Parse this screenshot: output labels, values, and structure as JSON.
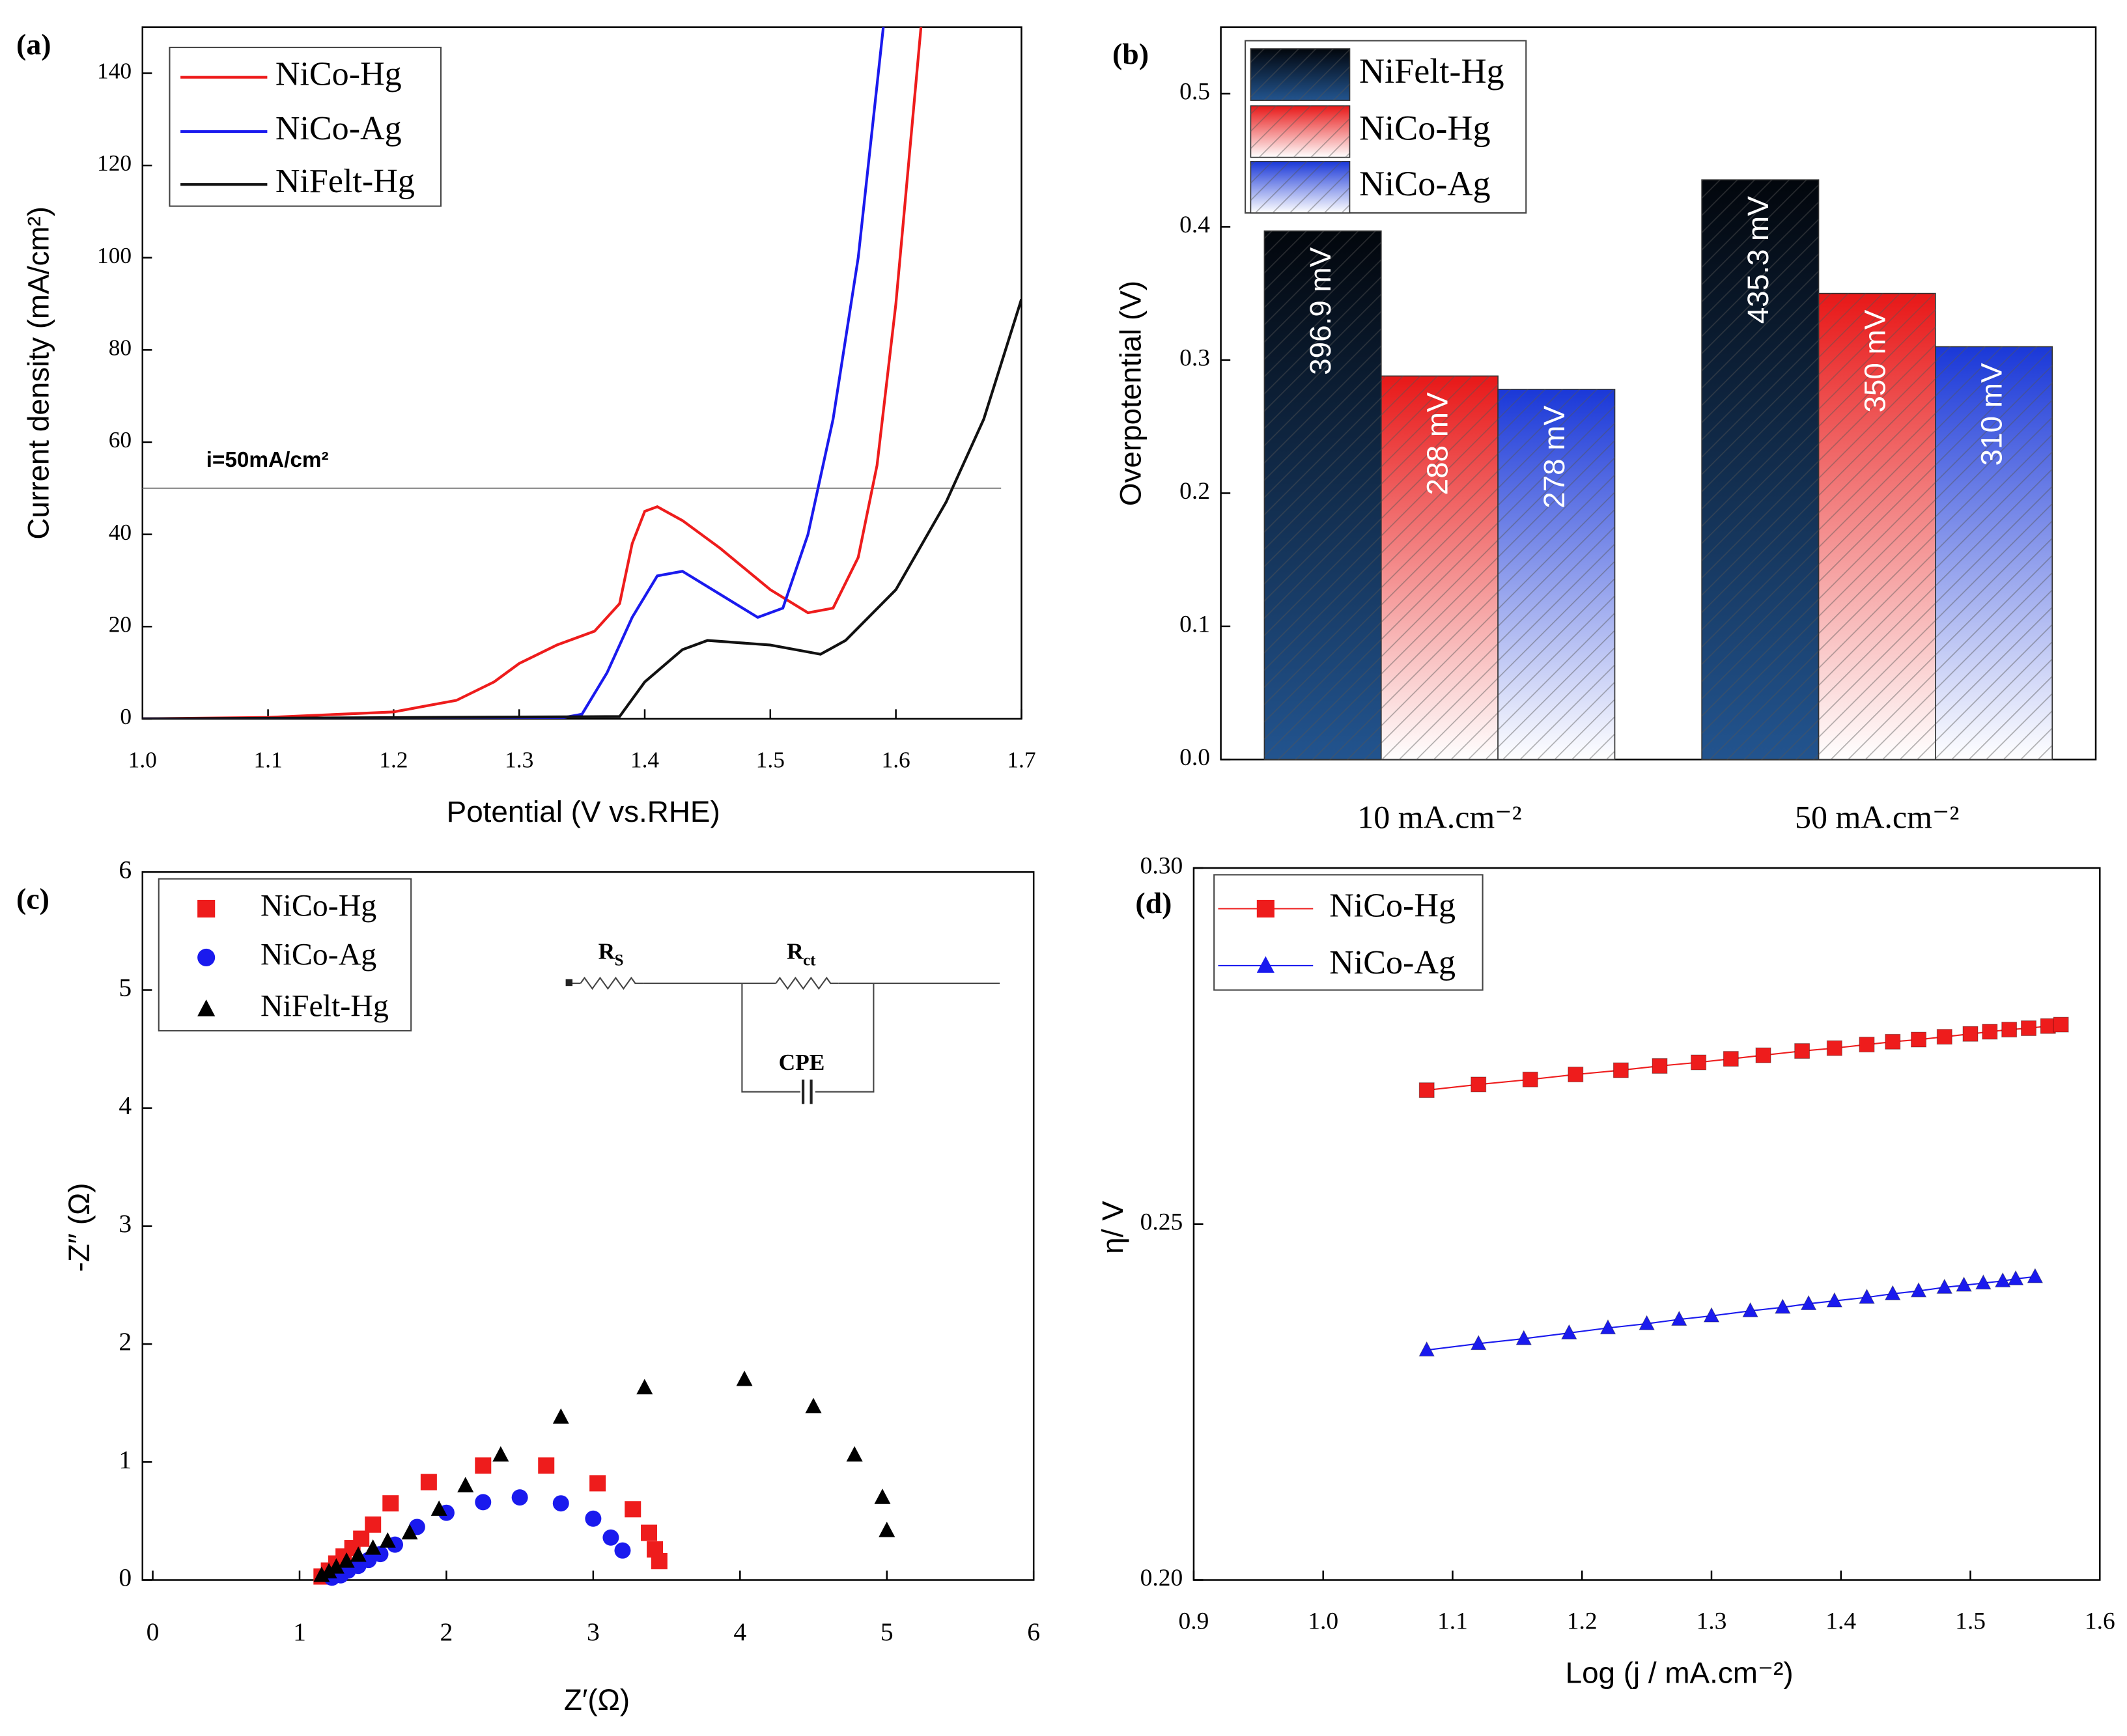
{
  "chart_data": [
    {
      "type": "line",
      "panel": "(a)",
      "x_label": "Potential (V vs.RHE)",
      "y_label": "Current density (mA/cm²)",
      "xlim": [
        1.0,
        1.7
      ],
      "xticks": [
        {
          "value": 1.0,
          "label": "1.0"
        },
        1.1,
        1.2,
        1.3,
        1.4,
        1.5,
        1.6,
        1.7
      ],
      "ylim": [
        0,
        150
      ],
      "yticks": [
        0,
        20,
        40,
        60,
        80,
        100,
        120,
        140
      ],
      "hline": 50,
      "annotation": "i=50mA/cm²",
      "series": [
        {
          "name": "NiCo-Hg",
          "color": "#ee1c1c",
          "x": [
            1.0,
            1.1,
            1.2,
            1.25,
            1.28,
            1.3,
            1.33,
            1.36,
            1.38,
            1.39,
            1.4,
            1.41,
            1.43,
            1.46,
            1.5,
            1.53,
            1.55,
            1.57,
            1.585,
            1.6,
            1.61,
            1.62
          ],
          "values": [
            0,
            0.3,
            1.5,
            4,
            8,
            12,
            16,
            19,
            25,
            38,
            45,
            46,
            43,
            37,
            28,
            23,
            24,
            35,
            55,
            90,
            120,
            150
          ]
        },
        {
          "name": "NiCo-Ag",
          "color": "#1a1aee",
          "x": [
            1.0,
            1.33,
            1.35,
            1.37,
            1.39,
            1.41,
            1.43,
            1.46,
            1.49,
            1.51,
            1.53,
            1.55,
            1.57,
            1.59
          ],
          "values": [
            0,
            0,
            1,
            10,
            22,
            31,
            32,
            27,
            22,
            24,
            40,
            65,
            100,
            150
          ]
        },
        {
          "name": "NiFelt-Hg",
          "color": "#111111",
          "x": [
            1.0,
            1.38,
            1.4,
            1.43,
            1.45,
            1.5,
            1.54,
            1.56,
            1.6,
            1.64,
            1.67,
            1.7
          ],
          "values": [
            0,
            0.5,
            8,
            15,
            17,
            16,
            14,
            17,
            28,
            47,
            65,
            91
          ]
        }
      ]
    },
    {
      "type": "bar",
      "panel": "(b)",
      "y_label": "Overpotential (V)",
      "categories": [
        "10 mA.cm⁻²",
        "50 mA.cm⁻²"
      ],
      "ylim": [
        0,
        0.55
      ],
      "yticks": [
        {
          "value": 0,
          "label": "0.0"
        },
        0.1,
        0.2,
        0.3,
        0.4,
        0.5
      ],
      "series": [
        {
          "name": "NiFelt-Hg",
          "colors": [
            "#02060c",
            "#22548f"
          ],
          "hatch": true,
          "values": [
            0.3969,
            0.4353
          ],
          "value_labels": [
            "396.9 mV",
            "435.3 mV"
          ]
        },
        {
          "name": "NiCo-Hg",
          "colors": [
            "#e81818",
            "#ffffff"
          ],
          "hatch": true,
          "values": [
            0.288,
            0.35
          ],
          "value_labels": [
            "288 mV",
            "350 mV"
          ]
        },
        {
          "name": "NiCo-Ag",
          "colors": [
            "#1a38d8",
            "#ffffff"
          ],
          "hatch": true,
          "values": [
            0.278,
            0.31
          ],
          "value_labels": [
            "278 mV",
            "310 mV"
          ]
        }
      ]
    },
    {
      "type": "scatter",
      "panel": "(c)",
      "x_label": "Z′(Ω)",
      "y_label": "-Z″ (Ω)",
      "xlim": [
        -0.07,
        6
      ],
      "xticks": [
        0,
        1,
        2,
        3,
        4,
        5,
        6
      ],
      "ylim": [
        0,
        6
      ],
      "yticks": [
        0,
        1,
        2,
        3,
        4,
        5,
        6
      ],
      "circuit": {
        "rs": {
          "main": "R",
          "sub": "S"
        },
        "rct": {
          "main": "R",
          "sub": "ct"
        },
        "cpe": "CPE"
      },
      "series": [
        {
          "name": "NiCo-Hg",
          "color": "#ee1c1c",
          "marker": "square",
          "x": [
            1.15,
            1.2,
            1.25,
            1.3,
            1.36,
            1.42,
            1.5,
            1.62,
            1.88,
            2.25,
            2.68,
            3.03,
            3.27,
            3.38,
            3.42,
            3.45
          ],
          "values": [
            0.03,
            0.08,
            0.14,
            0.2,
            0.27,
            0.35,
            0.47,
            0.65,
            0.83,
            0.97,
            0.97,
            0.82,
            0.6,
            0.4,
            0.26,
            0.16
          ]
        },
        {
          "name": "NiCo-Ag",
          "color": "#1a1aee",
          "marker": "circle",
          "x": [
            1.22,
            1.28,
            1.33,
            1.4,
            1.47,
            1.55,
            1.65,
            1.8,
            2.0,
            2.25,
            2.5,
            2.78,
            3.0,
            3.12,
            3.2
          ],
          "values": [
            0.02,
            0.04,
            0.08,
            0.12,
            0.17,
            0.22,
            0.3,
            0.45,
            0.57,
            0.66,
            0.7,
            0.65,
            0.52,
            0.36,
            0.25
          ]
        },
        {
          "name": "NiFelt-Hg",
          "color": "#000000",
          "marker": "triangle",
          "x": [
            1.15,
            1.2,
            1.25,
            1.32,
            1.4,
            1.5,
            1.6,
            1.75,
            1.95,
            2.13,
            2.37,
            2.78,
            3.35,
            4.03,
            4.5,
            4.78,
            4.97,
            5.0
          ],
          "values": [
            0.04,
            0.07,
            0.11,
            0.16,
            0.21,
            0.27,
            0.33,
            0.4,
            0.6,
            0.8,
            1.06,
            1.38,
            1.63,
            1.7,
            1.47,
            1.06,
            0.7,
            0.42
          ]
        }
      ]
    },
    {
      "type": "line",
      "panel": "(d)",
      "x_label": "Log (j / mA.cm⁻²)",
      "y_label": "η/ V",
      "xlim": [
        0.9,
        1.6
      ],
      "xticks": [
        0.9,
        {
          "value": 1.0,
          "label": "1.0"
        },
        1.1,
        1.2,
        1.3,
        1.4,
        1.5,
        1.6
      ],
      "ylim": [
        0.2,
        0.3
      ],
      "yticks": [
        {
          "value": 0.2,
          "label": "0.20"
        },
        0.25,
        {
          "value": 0.3,
          "label": "0.30"
        }
      ],
      "series": [
        {
          "name": "NiCo-Hg",
          "color": "#ee1c1c",
          "marker": "square",
          "x": [
            1.08,
            1.12,
            1.16,
            1.195,
            1.23,
            1.26,
            1.29,
            1.315,
            1.34,
            1.37,
            1.395,
            1.42,
            1.44,
            1.46,
            1.48,
            1.5,
            1.515,
            1.53,
            1.545,
            1.56,
            1.57
          ],
          "values": [
            0.2688,
            0.2696,
            0.2703,
            0.271,
            0.2716,
            0.2722,
            0.2727,
            0.2732,
            0.2737,
            0.2743,
            0.2747,
            0.2752,
            0.2756,
            0.2759,
            0.2763,
            0.2767,
            0.277,
            0.2773,
            0.2775,
            0.2778,
            0.278
          ]
        },
        {
          "name": "NiCo-Ag",
          "color": "#1a1aee",
          "marker": "triangle",
          "x": [
            1.08,
            1.12,
            1.155,
            1.19,
            1.22,
            1.25,
            1.275,
            1.3,
            1.33,
            1.355,
            1.375,
            1.395,
            1.42,
            1.44,
            1.46,
            1.48,
            1.495,
            1.51,
            1.525,
            1.535,
            1.55
          ],
          "values": [
            0.2323,
            0.2332,
            0.2339,
            0.2347,
            0.2354,
            0.236,
            0.2366,
            0.2371,
            0.2378,
            0.2383,
            0.2388,
            0.2392,
            0.2397,
            0.2402,
            0.2406,
            0.2411,
            0.2414,
            0.2417,
            0.242,
            0.2423,
            0.2426
          ]
        }
      ]
    }
  ]
}
